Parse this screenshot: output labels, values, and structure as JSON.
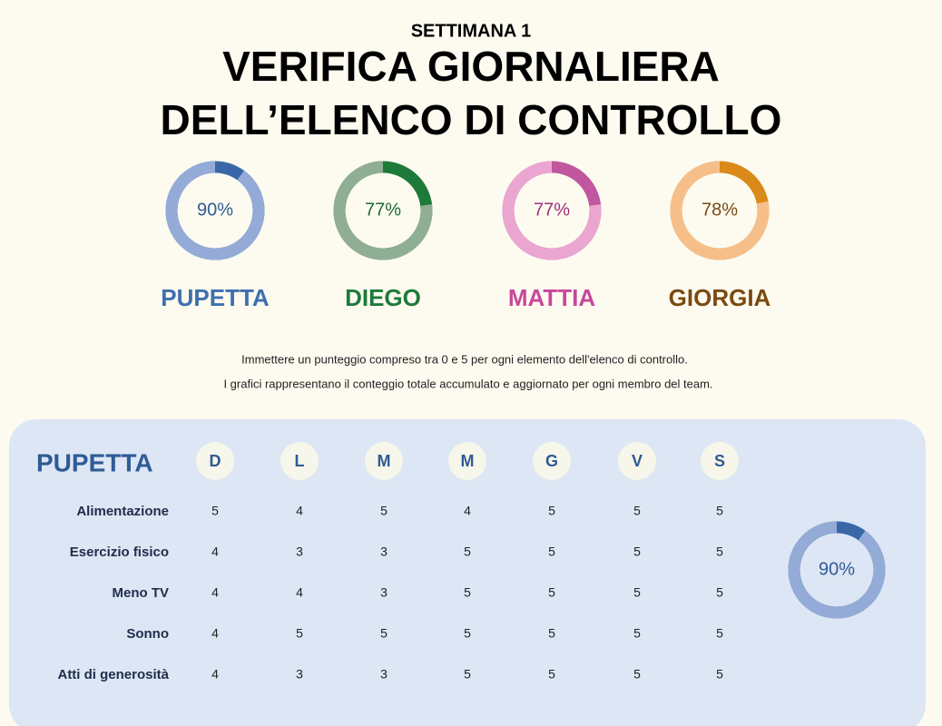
{
  "header": {
    "subtitle": "SETTIMANA 1",
    "title_line1": "VERIFICA GIORNALIERA",
    "title_line2": "DELL’ELENCO DI CONTROLLO"
  },
  "members": [
    {
      "name": "PUPETTA",
      "percent": {
        "value": 90,
        "label": "90%"
      }
    },
    {
      "name": "DIEGO",
      "percent": {
        "value": 77,
        "label": "77%"
      }
    },
    {
      "name": "MATTIA",
      "percent": {
        "value": 77,
        "label": "77%"
      }
    },
    {
      "name": "GIORGIA",
      "percent": {
        "value": 78,
        "label": "78%"
      }
    }
  ],
  "instructions": [
    "Immettere un punteggio compreso tra 0 e 5 per ogni elemento dell'elenco di controllo.",
    "I grafici rappresentano il conteggio totale accumulato e aggiornato per ogni membro del team."
  ],
  "table": {
    "name": "PUPETTA",
    "days": [
      "D",
      "L",
      "M",
      "M",
      "G",
      "V",
      "S"
    ],
    "rows": [
      {
        "label": "Alimentazione",
        "values": [
          5,
          4,
          5,
          4,
          5,
          5,
          5
        ]
      },
      {
        "label": "Esercizio fisico",
        "values": [
          4,
          3,
          3,
          5,
          5,
          5,
          5
        ]
      },
      {
        "label": "Meno TV",
        "values": [
          4,
          4,
          3,
          5,
          5,
          5,
          5
        ]
      },
      {
        "label": "Sonno",
        "values": [
          4,
          5,
          5,
          5,
          5,
          5,
          5
        ]
      },
      {
        "label": "Atti di generosità",
        "values": [
          4,
          3,
          3,
          5,
          5,
          5,
          5
        ]
      }
    ],
    "percent": {
      "value": 90,
      "label": "90%"
    }
  }
}
